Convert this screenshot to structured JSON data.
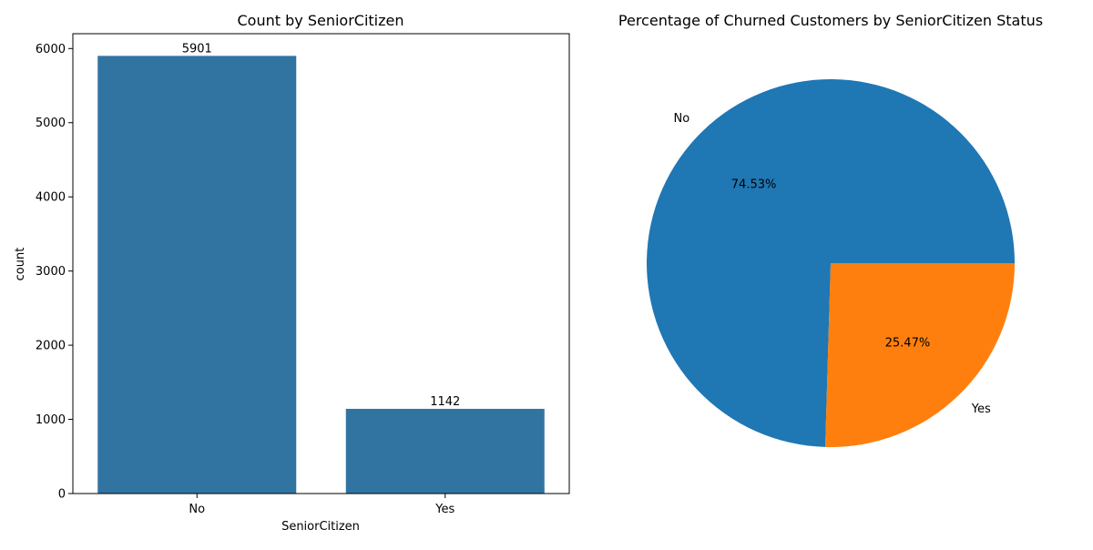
{
  "chart_data": [
    {
      "type": "bar",
      "title": "Count by SeniorCitizen",
      "xlabel": "SeniorCitizen",
      "ylabel": "count",
      "categories": [
        "No",
        "Yes"
      ],
      "values": [
        5901,
        1142
      ],
      "data_labels": [
        "5901",
        "1142"
      ],
      "ylim": [
        0,
        6200
      ],
      "yticks": [
        0,
        1000,
        2000,
        3000,
        4000,
        5000,
        6000
      ],
      "color": "#3274a1",
      "grid": false
    },
    {
      "type": "pie",
      "title": "Percentage of Churned Customers by SeniorCitizen Status",
      "labels": [
        "No",
        "Yes"
      ],
      "values": [
        74.53,
        25.47
      ],
      "pct_labels": [
        "74.53%",
        "25.47%"
      ],
      "colors": [
        "#1f77b4",
        "#ff7f0e"
      ]
    }
  ]
}
